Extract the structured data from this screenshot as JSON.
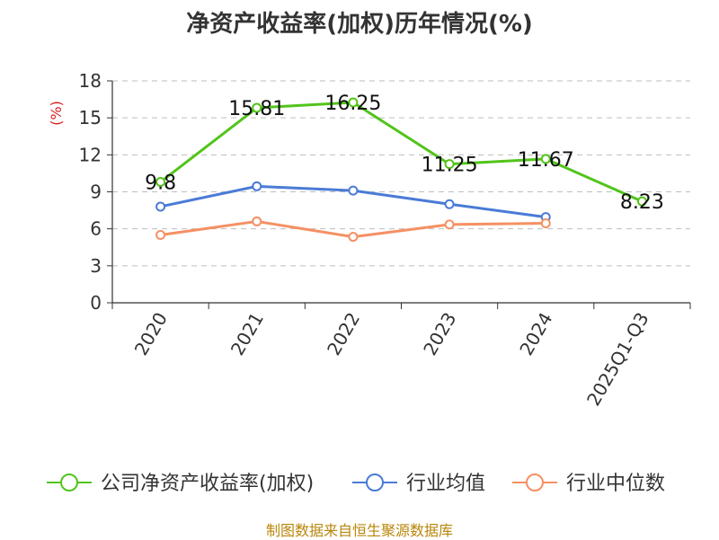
{
  "chart_data": {
    "type": "line",
    "title": "净资产收益率(加权)历年情况(%)",
    "ylabel": "(%)",
    "xlabel": "",
    "ylim": [
      0,
      18
    ],
    "yticks": [
      0,
      3,
      6,
      9,
      12,
      15,
      18
    ],
    "categories": [
      "2020",
      "2021",
      "2022",
      "2023",
      "2024",
      "2025Q1-Q3"
    ],
    "grid": true,
    "legend_position": "bottom",
    "series": [
      {
        "name": "公司净资产收益率(加权)",
        "color": "#52c41a",
        "labels": true,
        "values": [
          9.8,
          15.81,
          16.25,
          11.25,
          11.67,
          8.23
        ]
      },
      {
        "name": "行业均值",
        "color": "#4a7bd6",
        "labels": false,
        "values": [
          7.8,
          9.45,
          9.1,
          8.0,
          6.95,
          null
        ]
      },
      {
        "name": "行业中位数",
        "color": "#f59063",
        "labels": false,
        "values": [
          5.5,
          6.6,
          5.35,
          6.35,
          6.45,
          null
        ]
      }
    ]
  },
  "footer": {
    "source": "制图数据来自恒生聚源数据库"
  }
}
